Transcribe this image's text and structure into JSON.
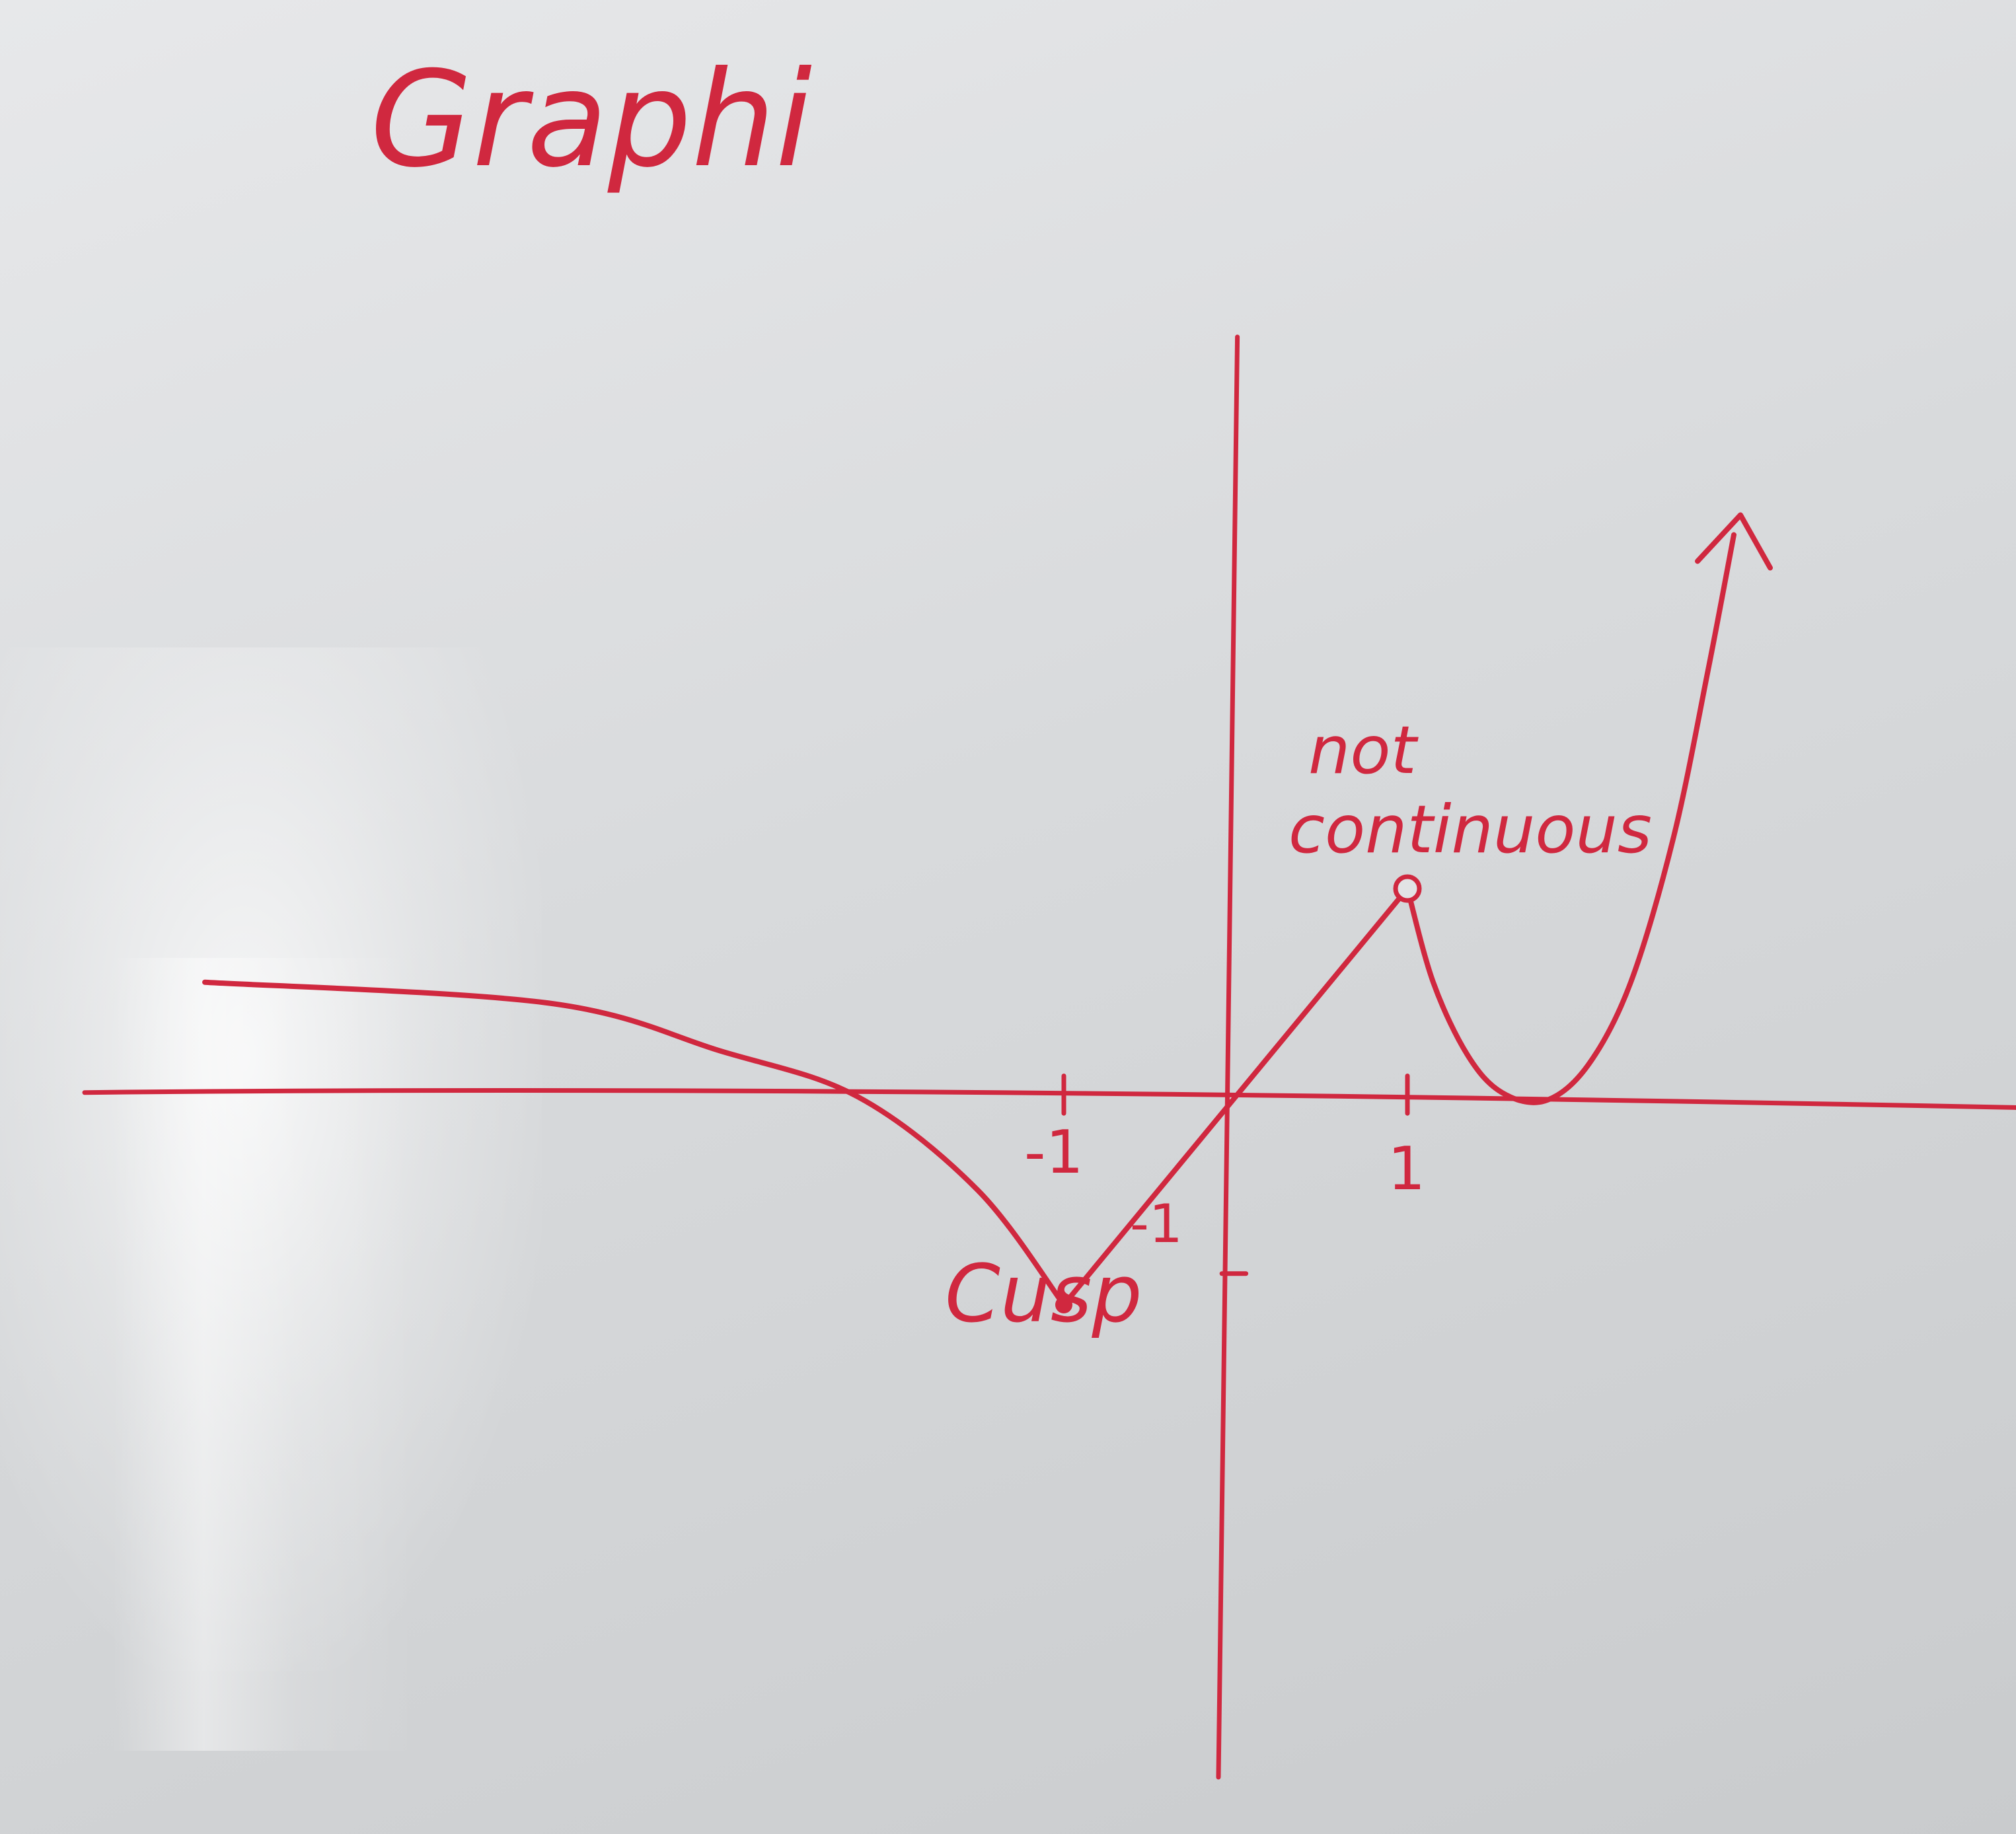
{
  "chart_data": {
    "type": "line",
    "title": "Graphi",
    "xlabel": "",
    "ylabel": "",
    "x_ticks": [
      "-1",
      "1"
    ],
    "y_ticks": [
      "-1"
    ],
    "ink_color": "#d0283f",
    "xlim": [
      -7,
      3.2
    ],
    "ylim": [
      -1.2,
      2.9
    ],
    "series": [
      {
        "points": [
          [
            -6.0,
            0.55
          ],
          [
            -4.0,
            0.45
          ],
          [
            -3.0,
            0.22
          ],
          [
            -2.2,
            0.0
          ],
          [
            -1.5,
            -0.45
          ],
          [
            -1.0,
            -1.0
          ]
        ]
      },
      {
        "points": [
          [
            -1.0,
            -1.0
          ],
          [
            0.0,
            0.0
          ],
          [
            1.0,
            1.0
          ]
        ]
      },
      {
        "points": [
          [
            1.0,
            1.0
          ],
          [
            1.15,
            0.55
          ],
          [
            1.35,
            0.2
          ],
          [
            1.55,
            0.02
          ],
          [
            1.8,
            -0.02
          ],
          [
            2.05,
            0.15
          ],
          [
            2.3,
            0.55
          ],
          [
            2.55,
            1.25
          ],
          [
            2.75,
            2.05
          ],
          [
            2.9,
            2.7
          ]
        ]
      }
    ],
    "annotations": [
      {
        "text": "Cusp",
        "at": [
          -1.0,
          -1.0
        ]
      },
      {
        "text": "not continuous",
        "at": [
          1.0,
          1.0
        ]
      }
    ],
    "grid": false
  }
}
